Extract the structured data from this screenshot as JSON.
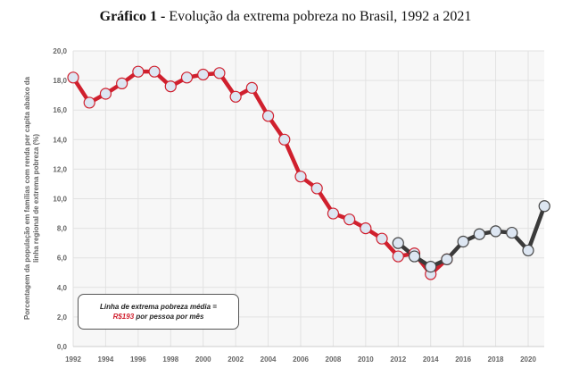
{
  "title": {
    "prefix": "Gráfico 1 -",
    "text": "Evolução da extrema pobreza no Brasil, 1992 a 2021"
  },
  "annotation": {
    "line1": "Linha de extrema pobreza média =",
    "value": "R$193",
    "line2": "por pessoa por mês"
  },
  "chart_data": {
    "type": "line",
    "title": "Gráfico 1 - Evolução da extrema pobreza no Brasil, 1992 a 2021",
    "ylabel": "Porcentagem da população em famílias com renda per capita abaixo da linha regional de extrema pobreza  (%)",
    "ylabel_lines": [
      "Porcentagem da população em famílias com renda per capita abaixo da",
      "linha regional de extrema pobreza  (%)"
    ],
    "xlabel": "",
    "ylim": [
      0,
      20
    ],
    "xlim": [
      1992,
      2021
    ],
    "yticks": [
      "0,0",
      "2,0",
      "4,0",
      "6,0",
      "8,0",
      "10,0",
      "12,0",
      "14,0",
      "16,0",
      "18,0",
      "20,0"
    ],
    "xticks": [
      "1992",
      "1994",
      "1996",
      "1998",
      "2000",
      "2002",
      "2004",
      "2006",
      "2008",
      "2010",
      "2012",
      "2014",
      "2016",
      "2018",
      "2020"
    ],
    "grid": true,
    "series": [
      {
        "color": "#d0202e",
        "x": [
          1992,
          1993,
          1994,
          1995,
          1996,
          1997,
          1998,
          1999,
          2000,
          2001,
          2002,
          2003,
          2004,
          2005,
          2006,
          2007,
          2008,
          2009,
          2010,
          2011,
          2012,
          2013,
          2014,
          2015
        ],
        "values": [
          18.2,
          16.5,
          17.1,
          17.8,
          18.6,
          18.6,
          17.6,
          18.2,
          18.4,
          18.5,
          16.9,
          17.5,
          15.6,
          14.0,
          11.5,
          10.7,
          9.0,
          8.6,
          8.0,
          7.3,
          6.1,
          6.3,
          4.9,
          5.9
        ]
      },
      {
        "color": "#3a3a3a",
        "x": [
          2012,
          2013,
          2014,
          2015,
          2016,
          2017,
          2018,
          2019,
          2020,
          2021
        ],
        "values": [
          7.0,
          6.1,
          5.4,
          5.9,
          7.1,
          7.6,
          7.8,
          7.7,
          6.5,
          9.5
        ]
      }
    ]
  }
}
